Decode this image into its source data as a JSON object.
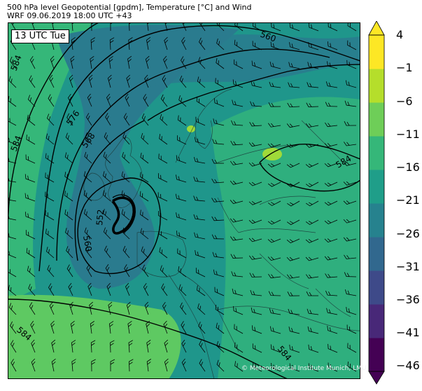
{
  "header": {
    "line1": "500 hPa level Geopotential [gpdm], Temperature [°C] and Wind",
    "line2": "WRF 09.06.2019 18:00 UTC +43"
  },
  "map": {
    "time_label": "13 UTC Tue",
    "credit": "© Meteorological Institute Munich, LMU",
    "contour_labels": [
      "584",
      "584",
      "576",
      "568",
      "560",
      "552",
      "560",
      "584",
      "584",
      "584"
    ],
    "fill_colors": [
      "#2a7b8e",
      "#1f968b",
      "#35b779",
      "#5ec962",
      "#a0da39"
    ]
  },
  "colorbar": {
    "labels": [
      "4",
      "−1",
      "−6",
      "−11",
      "−16",
      "−21",
      "−26",
      "−31",
      "−36",
      "−41",
      "−46"
    ],
    "colors": [
      "#440154",
      "#482878",
      "#3e4a89",
      "#31688e",
      "#26828e",
      "#1f9e89",
      "#35b779",
      "#6ece58",
      "#b5de2b",
      "#fde725"
    ]
  }
}
